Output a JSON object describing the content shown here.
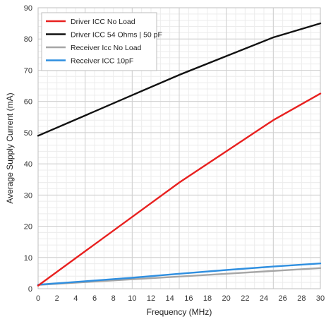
{
  "chart_data": {
    "type": "line",
    "title": "",
    "xlabel": "Frequency (MHz)",
    "ylabel": "Average Supply Current (mA)",
    "xlim": [
      0,
      30
    ],
    "ylim": [
      0,
      90
    ],
    "xticks": [
      0,
      2,
      4,
      6,
      8,
      10,
      12,
      14,
      16,
      18,
      20,
      22,
      24,
      26,
      28,
      30
    ],
    "yticks": [
      0,
      10,
      20,
      30,
      40,
      50,
      60,
      70,
      80,
      90
    ],
    "grid": true,
    "legend_position": "top-left",
    "series": [
      {
        "name": "Driver ICC No Load",
        "color": "#e8201f",
        "x": [
          0,
          5,
          10,
          15,
          20,
          25,
          30
        ],
        "y": [
          1,
          12,
          23,
          34,
          44,
          54,
          62.5
        ]
      },
      {
        "name": "Driver ICC 54 Ohms | 50 pF",
        "color": "#111111",
        "x": [
          0,
          5,
          10,
          15,
          20,
          25,
          30
        ],
        "y": [
          49,
          55.5,
          62,
          68.5,
          74.5,
          80.5,
          85
        ]
      },
      {
        "name": "Receiver Icc No Load",
        "color": "#a6a6a6",
        "x": [
          0,
          5,
          10,
          15,
          20,
          25,
          30
        ],
        "y": [
          1.2,
          2.1,
          3,
          3.9,
          4.8,
          5.7,
          6.6
        ]
      },
      {
        "name": "Receiver ICC 10pF",
        "color": "#2f8fe0",
        "x": [
          0,
          5,
          10,
          15,
          20,
          25,
          30
        ],
        "y": [
          1.3,
          2.4,
          3.5,
          4.8,
          6,
          7.1,
          8.1
        ]
      }
    ]
  }
}
